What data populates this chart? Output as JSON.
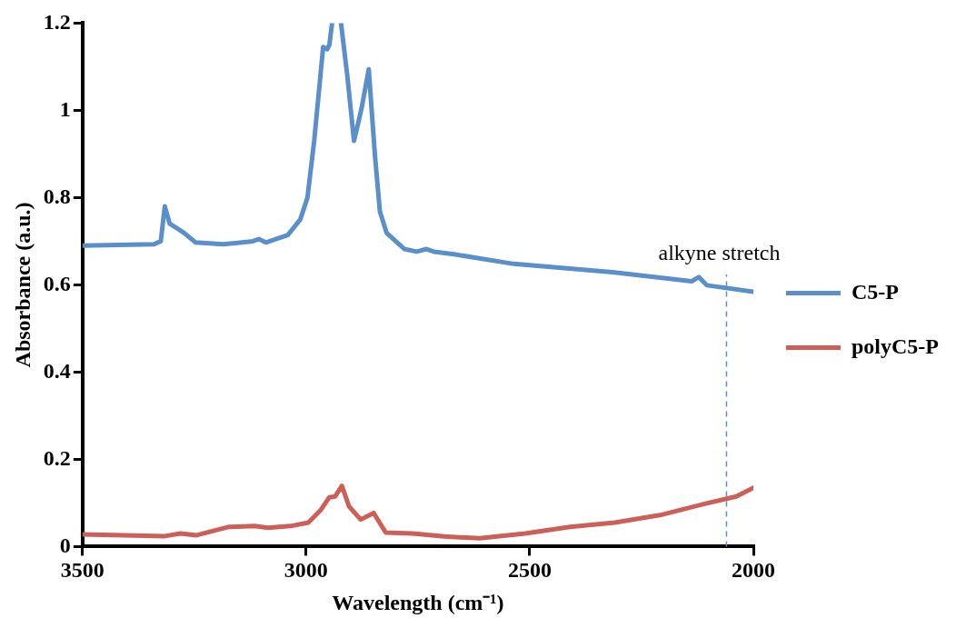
{
  "chart_data": {
    "type": "line",
    "xlabel": "Wavelength (cm⁻¹)",
    "ylabel": "Absorbance (a.u.)",
    "xlim": [
      3500,
      2000
    ],
    "xticks": [
      3500,
      3000,
      2500,
      2000
    ],
    "ylim": [
      0,
      1.2
    ],
    "yticks": [
      0,
      0.2,
      0.4,
      0.6,
      0.8,
      1,
      1.2
    ],
    "grid": false,
    "legend": "right",
    "marker": "none",
    "line_style": "solid",
    "ref_lines": [
      {
        "axis": "x",
        "value": 2060,
        "label": "alkyne stretch",
        "color": "#5b8fc9",
        "line_style": "dashed"
      }
    ],
    "series": [
      {
        "name": "C5-P",
        "color": "#5b8fc9",
        "x": [
          3500,
          3340,
          3325,
          3316,
          3305,
          3274,
          3247,
          3185,
          3119,
          3106,
          3090,
          3041,
          3013,
          2997,
          2982,
          2968,
          2962,
          2953,
          2948,
          2942,
          2932,
          2922,
          2908,
          2893,
          2886,
          2875,
          2860,
          2846,
          2835,
          2820,
          2780,
          2753,
          2731,
          2714,
          2669,
          2536,
          2315,
          2138,
          2122,
          2104,
          2000
        ],
        "values": [
          0.69,
          0.693,
          0.7,
          0.78,
          0.74,
          0.72,
          0.697,
          0.693,
          0.7,
          0.705,
          0.697,
          0.714,
          0.75,
          0.8,
          0.93,
          1.08,
          1.145,
          1.14,
          1.15,
          1.2,
          null,
          1.2,
          1.08,
          0.93,
          0.96,
          1.01,
          1.094,
          0.895,
          0.768,
          0.719,
          0.682,
          0.676,
          0.682,
          0.676,
          0.67,
          0.648,
          0.629,
          0.608,
          0.618,
          0.599,
          0.584
        ]
      },
      {
        "name": "polyC5-P",
        "color": "#cc5f57",
        "x": [
          3500,
          3316,
          3281,
          3245,
          3174,
          3115,
          3086,
          3035,
          2995,
          2968,
          2948,
          2935,
          2920,
          2904,
          2878,
          2849,
          2822,
          2762,
          2691,
          2612,
          2510,
          2410,
          2310,
          2209,
          2109,
          2038,
          2000
        ],
        "values": [
          0.028,
          0.024,
          0.03,
          0.026,
          0.045,
          0.047,
          0.043,
          0.047,
          0.055,
          0.083,
          0.113,
          0.115,
          0.139,
          0.092,
          0.062,
          0.077,
          0.032,
          0.03,
          0.023,
          0.019,
          0.03,
          0.045,
          0.055,
          0.072,
          0.098,
          0.115,
          0.135
        ]
      }
    ]
  }
}
